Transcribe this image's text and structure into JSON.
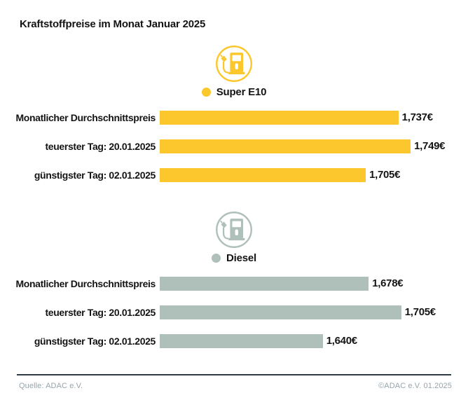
{
  "title": "Kraftstoffpreise im Monat Januar 2025",
  "colors": {
    "super_e10": "#FBC72D",
    "diesel": "#AFC0BA",
    "text": "#141414",
    "footer_text": "#96A4AC",
    "divider": "#2E3B42"
  },
  "chart_data": {
    "type": "bar",
    "orientation": "horizontal",
    "title": "Kraftstoffpreise im Monat Januar 2025",
    "grid": false,
    "legend_position": "above-each-section",
    "sections": [
      {
        "fuel": "Super E10",
        "icon": "fuel-pump-icon",
        "color": "#FBC72D",
        "axis_min": 1.503,
        "axis_max": 1.786,
        "rows": [
          {
            "label": "Monatlicher Durchschnittspreis",
            "value": 1.737,
            "value_label": "1,737€"
          },
          {
            "label": "teuerster Tag: 20.01.2025",
            "value": 1.749,
            "value_label": "1,749€"
          },
          {
            "label": "günstigster Tag: 02.01.2025",
            "value": 1.705,
            "value_label": "1,705€"
          }
        ]
      },
      {
        "fuel": "Diesel",
        "icon": "fuel-pump-icon",
        "color": "#AFC0BA",
        "axis_min": 1.505,
        "axis_max": 1.744,
        "rows": [
          {
            "label": "Monatlicher Durchschnittspreis",
            "value": 1.678,
            "value_label": "1,678€"
          },
          {
            "label": "teuerster Tag: 20.01.2025",
            "value": 1.705,
            "value_label": "1,705€"
          },
          {
            "label": "günstigster Tag: 02.01.2025",
            "value": 1.64,
            "value_label": "1,640€"
          }
        ]
      }
    ]
  },
  "footer": {
    "source": "Quelle: ADAC e.V.",
    "copyright": "©ADAC e.V. 01.2025"
  }
}
